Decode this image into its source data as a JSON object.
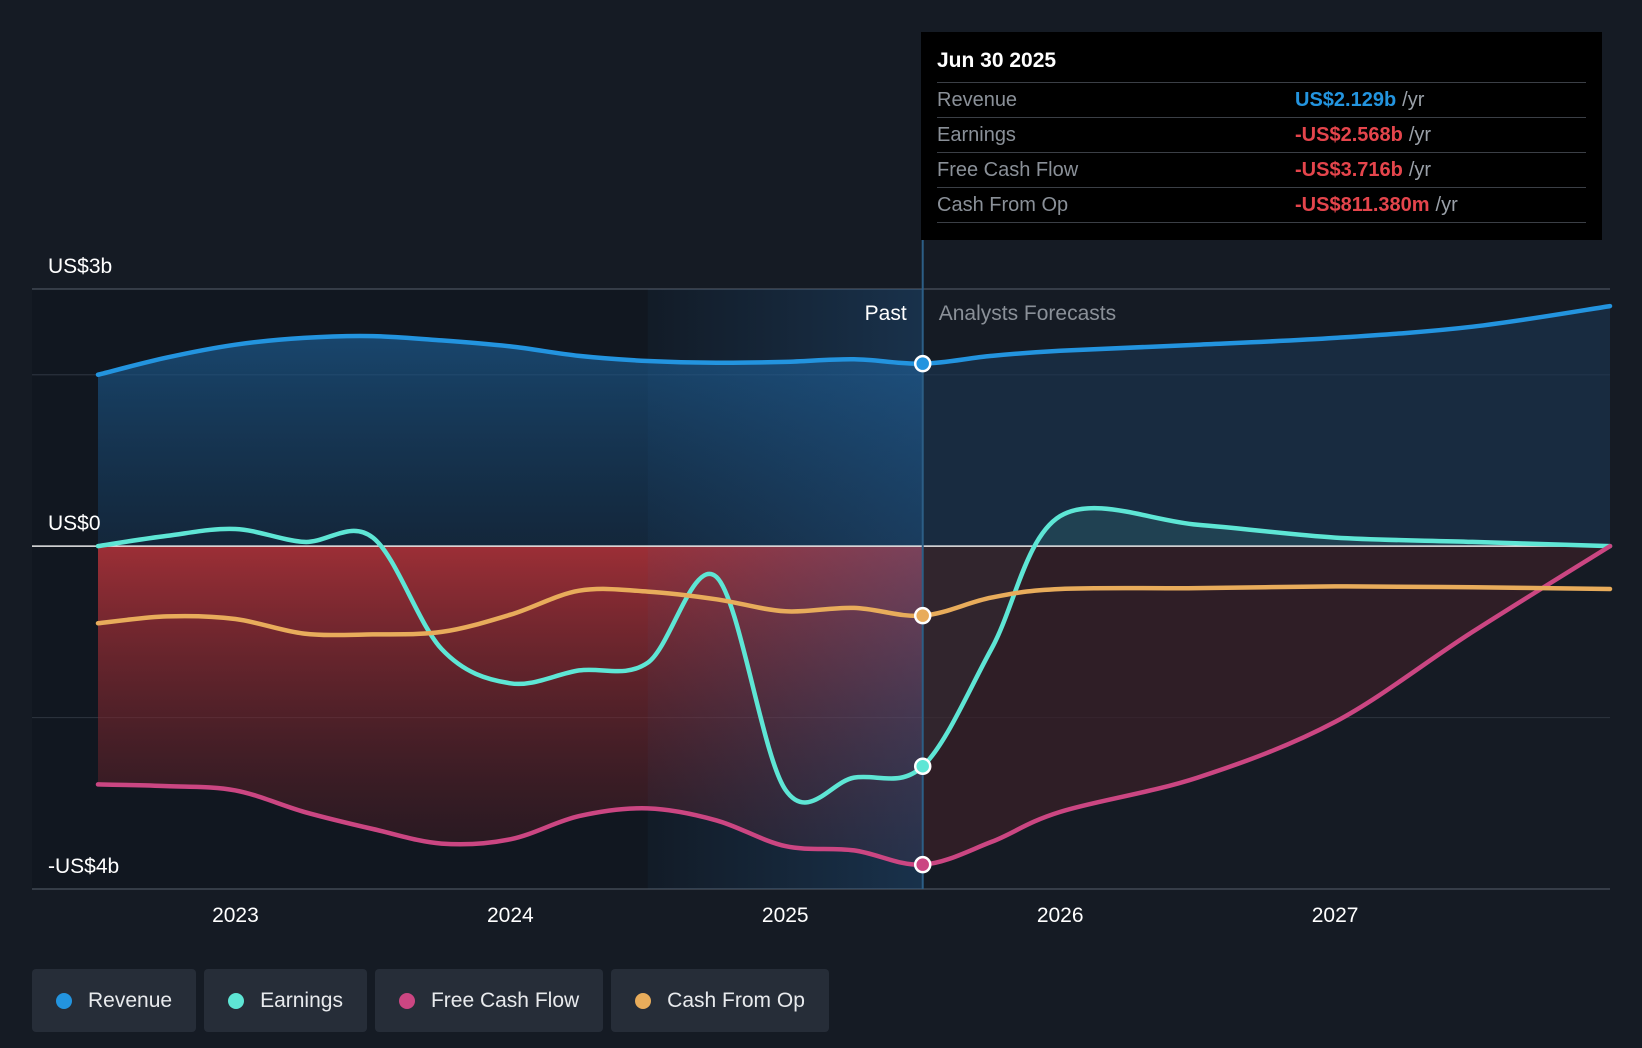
{
  "chart_data": {
    "type": "area",
    "y_ticks": [
      {
        "value": 3,
        "label": "US$3b"
      },
      {
        "value": 0,
        "label": "US$0"
      },
      {
        "value": -4,
        "label": "-US$4b"
      }
    ],
    "x_ticks": [
      "2023",
      "2024",
      "2025",
      "2026",
      "2027"
    ],
    "x_tick_values": [
      2023.0,
      2024.0,
      2025.0,
      2026.0,
      2027.0
    ],
    "xlim": [
      2022.26,
      2028.0
    ],
    "ylim": [
      -4,
      3
    ],
    "past_label": "Past",
    "forecast_label": "Analysts Forecasts",
    "divider_x": 2025.5,
    "highlight_start_x": 2024.5,
    "series": [
      {
        "name": "Revenue",
        "color": "#2394df",
        "points": [
          [
            2022.5,
            2.0
          ],
          [
            2022.75,
            2.2
          ],
          [
            2023.0,
            2.35
          ],
          [
            2023.25,
            2.43
          ],
          [
            2023.5,
            2.45
          ],
          [
            2023.75,
            2.4
          ],
          [
            2024.0,
            2.33
          ],
          [
            2024.25,
            2.22
          ],
          [
            2024.5,
            2.16
          ],
          [
            2024.75,
            2.14
          ],
          [
            2025.0,
            2.15
          ],
          [
            2025.25,
            2.18
          ],
          [
            2025.5,
            2.129
          ],
          [
            2025.75,
            2.22
          ],
          [
            2026.0,
            2.28
          ],
          [
            2026.5,
            2.35
          ],
          [
            2027.0,
            2.43
          ],
          [
            2027.5,
            2.56
          ],
          [
            2028.0,
            2.8
          ]
        ]
      },
      {
        "name": "Earnings",
        "color": "#5ee6d5",
        "points": [
          [
            2022.5,
            0.0
          ],
          [
            2022.75,
            0.12
          ],
          [
            2023.0,
            0.2
          ],
          [
            2023.25,
            0.05
          ],
          [
            2023.5,
            0.1
          ],
          [
            2023.75,
            -1.2
          ],
          [
            2024.0,
            -1.6
          ],
          [
            2024.25,
            -1.45
          ],
          [
            2024.5,
            -1.36
          ],
          [
            2024.75,
            -0.36
          ],
          [
            2025.0,
            -2.84
          ],
          [
            2025.25,
            -2.7
          ],
          [
            2025.5,
            -2.568
          ],
          [
            2025.75,
            -1.2
          ],
          [
            2026.0,
            0.35
          ],
          [
            2026.5,
            0.25
          ],
          [
            2027.0,
            0.1
          ],
          [
            2027.5,
            0.05
          ],
          [
            2028.0,
            0.0
          ]
        ]
      },
      {
        "name": "Free Cash Flow",
        "color": "#cb4682",
        "points": [
          [
            2022.5,
            -2.78
          ],
          [
            2022.75,
            -2.8
          ],
          [
            2023.0,
            -2.85
          ],
          [
            2023.25,
            -3.1
          ],
          [
            2023.5,
            -3.3
          ],
          [
            2023.75,
            -3.47
          ],
          [
            2024.0,
            -3.42
          ],
          [
            2024.25,
            -3.15
          ],
          [
            2024.5,
            -3.06
          ],
          [
            2024.75,
            -3.2
          ],
          [
            2025.0,
            -3.5
          ],
          [
            2025.25,
            -3.55
          ],
          [
            2025.5,
            -3.716
          ],
          [
            2025.75,
            -3.45
          ],
          [
            2026.0,
            -3.1
          ],
          [
            2026.5,
            -2.7
          ],
          [
            2027.0,
            -2.05
          ],
          [
            2027.5,
            -1.0
          ],
          [
            2028.0,
            0.0
          ]
        ]
      },
      {
        "name": "Cash From Op",
        "color": "#e8ac5b",
        "points": [
          [
            2022.5,
            -0.9
          ],
          [
            2022.75,
            -0.82
          ],
          [
            2023.0,
            -0.85
          ],
          [
            2023.25,
            -1.02
          ],
          [
            2023.5,
            -1.03
          ],
          [
            2023.75,
            -1.0
          ],
          [
            2024.0,
            -0.8
          ],
          [
            2024.25,
            -0.52
          ],
          [
            2024.5,
            -0.53
          ],
          [
            2024.75,
            -0.62
          ],
          [
            2025.0,
            -0.76
          ],
          [
            2025.25,
            -0.72
          ],
          [
            2025.5,
            -0.811
          ],
          [
            2025.75,
            -0.6
          ],
          [
            2026.0,
            -0.5
          ],
          [
            2026.5,
            -0.49
          ],
          [
            2027.0,
            -0.47
          ],
          [
            2027.5,
            -0.48
          ],
          [
            2028.0,
            -0.5
          ]
        ]
      }
    ]
  },
  "tooltip": {
    "date": "Jun 30 2025",
    "rows": [
      {
        "label": "Revenue",
        "value": "US$2.129b",
        "unit": "/yr",
        "color": "#2394df"
      },
      {
        "label": "Earnings",
        "value": "-US$2.568b",
        "unit": "/yr",
        "color": "#e5454c"
      },
      {
        "label": "Free Cash Flow",
        "value": "-US$3.716b",
        "unit": "/yr",
        "color": "#e5454c"
      },
      {
        "label": "Cash From Op",
        "value": "-US$811.380m",
        "unit": "/yr",
        "color": "#e5454c"
      }
    ]
  },
  "legend": [
    {
      "label": "Revenue",
      "color": "#2394df"
    },
    {
      "label": "Earnings",
      "color": "#5ee6d5"
    },
    {
      "label": "Free Cash Flow",
      "color": "#cb4682"
    },
    {
      "label": "Cash From Op",
      "color": "#e8ac5b"
    }
  ]
}
